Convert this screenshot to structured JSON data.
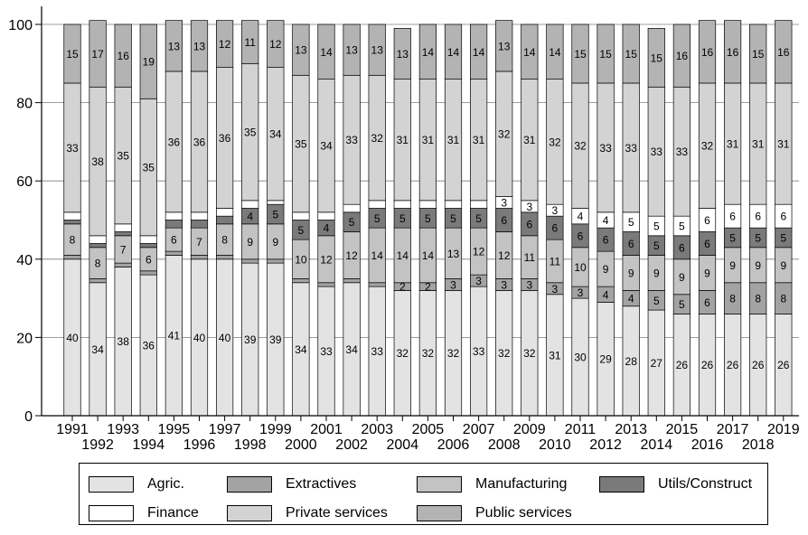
{
  "chart_data": {
    "type": "bar",
    "stacked": true,
    "ylim": [
      0,
      100
    ],
    "yticks": [
      0,
      20,
      40,
      60,
      80,
      100
    ],
    "grid": "horizontal",
    "legend_position": "bottom",
    "categories": [
      "1991",
      "1992",
      "1993",
      "1994",
      "1995",
      "1996",
      "1997",
      "1998",
      "1999",
      "2000",
      "2001",
      "2002",
      "2003",
      "2004",
      "2005",
      "2006",
      "2007",
      "2008",
      "2009",
      "2010",
      "2011",
      "2012",
      "2013",
      "2014",
      "2015",
      "2016",
      "2017",
      "2018",
      "2019"
    ],
    "series": [
      {
        "name": "Agric.",
        "color": "#e3e3e3",
        "values": [
          40,
          34,
          38,
          36,
          41,
          40,
          40,
          39,
          39,
          34,
          33,
          34,
          33,
          32,
          32,
          32,
          33,
          32,
          32,
          31,
          30,
          29,
          28,
          27,
          26,
          26,
          26,
          26,
          26
        ]
      },
      {
        "name": "Extractives",
        "color": "#a3a3a3",
        "values": [
          1,
          1,
          1,
          1,
          1,
          1,
          1,
          1,
          1,
          1,
          1,
          1,
          1,
          2,
          2,
          3,
          3,
          3,
          3,
          3,
          3,
          4,
          4,
          5,
          5,
          6,
          8,
          8,
          8
        ]
      },
      {
        "name": "Manufacturing",
        "color": "#c3c3c3",
        "values": [
          8,
          8,
          7,
          6,
          6,
          7,
          8,
          9,
          9,
          10,
          12,
          12,
          14,
          14,
          14,
          13,
          12,
          12,
          11,
          11,
          10,
          9,
          9,
          9,
          9,
          9,
          9,
          9,
          9
        ]
      },
      {
        "name": "Utils/Construct",
        "color": "#7a7a7a",
        "values": [
          1,
          1,
          1,
          1,
          2,
          2,
          2,
          4,
          5,
          5,
          4,
          5,
          5,
          5,
          5,
          5,
          5,
          6,
          6,
          6,
          6,
          6,
          6,
          5,
          6,
          6,
          5,
          5,
          5
        ]
      },
      {
        "name": "Finance",
        "color": "#ffffff",
        "values": [
          2,
          2,
          2,
          2,
          2,
          2,
          2,
          2,
          1,
          2,
          2,
          2,
          2,
          2,
          2,
          2,
          2,
          3,
          3,
          3,
          4,
          4,
          5,
          5,
          5,
          6,
          6,
          6,
          6
        ]
      },
      {
        "name": "Private services",
        "color": "#d3d3d3",
        "values": [
          33,
          38,
          35,
          35,
          36,
          36,
          36,
          35,
          34,
          35,
          34,
          33,
          32,
          31,
          31,
          31,
          31,
          32,
          31,
          32,
          32,
          33,
          33,
          33,
          33,
          32,
          31,
          31,
          31
        ]
      },
      {
        "name": "Public services",
        "color": "#b3b3b3",
        "values": [
          15,
          17,
          16,
          19,
          13,
          13,
          12,
          11,
          12,
          13,
          14,
          13,
          13,
          13,
          14,
          14,
          14,
          13,
          14,
          14,
          15,
          15,
          15,
          15,
          16,
          16,
          16,
          15,
          16
        ]
      }
    ],
    "visible_labels": {
      "Agric.": [
        40,
        34,
        38,
        36,
        41,
        40,
        40,
        39,
        39,
        34,
        33,
        34,
        33,
        32,
        32,
        32,
        33,
        32,
        32,
        31,
        30,
        29,
        28,
        27,
        26,
        26,
        26,
        26,
        26
      ],
      "Extractives": [
        null,
        null,
        null,
        null,
        null,
        null,
        null,
        null,
        null,
        null,
        null,
        null,
        null,
        2,
        2,
        3,
        3,
        3,
        3,
        3,
        3,
        4,
        4,
        5,
        5,
        6,
        8,
        8,
        8
      ],
      "Manufacturing": [
        8,
        8,
        7,
        6,
        6,
        7,
        8,
        9,
        9,
        10,
        12,
        12,
        14,
        14,
        14,
        13,
        12,
        12,
        11,
        11,
        10,
        9,
        9,
        9,
        9,
        9,
        9,
        9,
        9
      ],
      "Utils/Construct": [
        null,
        null,
        null,
        null,
        null,
        null,
        null,
        4,
        5,
        5,
        4,
        5,
        5,
        5,
        5,
        5,
        5,
        6,
        6,
        6,
        6,
        6,
        6,
        5,
        6,
        6,
        5,
        5,
        5
      ],
      "Finance": [
        null,
        null,
        null,
        null,
        null,
        null,
        null,
        null,
        null,
        null,
        null,
        null,
        null,
        null,
        null,
        null,
        null,
        3,
        3,
        3,
        4,
        4,
        5,
        5,
        5,
        6,
        6,
        6,
        6
      ],
      "Private services": [
        33,
        38,
        35,
        35,
        36,
        36,
        36,
        35,
        34,
        35,
        34,
        33,
        32,
        31,
        31,
        31,
        31,
        32,
        31,
        32,
        32,
        33,
        33,
        33,
        33,
        32,
        31,
        31,
        31
      ],
      "Public services": [
        15,
        17,
        16,
        19,
        13,
        13,
        12,
        11,
        12,
        13,
        14,
        13,
        13,
        13,
        14,
        14,
        14,
        13,
        14,
        14,
        15,
        15,
        15,
        15,
        16,
        16,
        16,
        15,
        16
      ]
    }
  }
}
